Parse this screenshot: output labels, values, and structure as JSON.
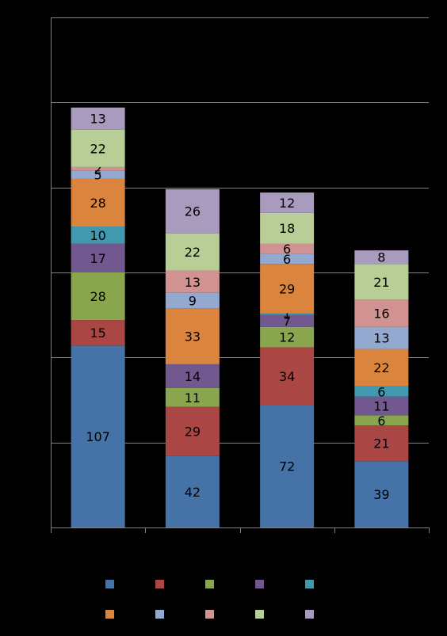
{
  "chart_data": {
    "type": "bar",
    "stacked": true,
    "categories": [
      "",
      "",
      "",
      ""
    ],
    "series": [
      {
        "color": "#4572A7",
        "values": [
          107,
          42,
          72,
          39
        ]
      },
      {
        "color": "#AA4643",
        "values": [
          15,
          29,
          34,
          21
        ]
      },
      {
        "color": "#89A54E",
        "values": [
          28,
          11,
          12,
          6
        ]
      },
      {
        "color": "#71588F",
        "values": [
          17,
          14,
          7,
          11
        ]
      },
      {
        "color": "#4198AF",
        "values": [
          10,
          0,
          1,
          6
        ]
      },
      {
        "color": "#DB843D",
        "values": [
          28,
          33,
          29,
          22
        ]
      },
      {
        "color": "#93A9CF",
        "values": [
          5,
          9,
          6,
          13
        ]
      },
      {
        "color": "#D19392",
        "values": [
          2,
          13,
          6,
          16
        ]
      },
      {
        "color": "#B9CD96",
        "values": [
          22,
          22,
          18,
          21
        ]
      },
      {
        "color": "#A99BBD",
        "values": [
          13,
          26,
          12,
          8
        ]
      }
    ],
    "ylim": [
      0,
      300
    ],
    "y_gridlines": [
      50,
      100,
      150,
      200,
      250,
      300
    ],
    "grid": true,
    "legend": "bottom",
    "background": "#000000",
    "gridline_color": "#808080",
    "label_color": "#000000"
  }
}
